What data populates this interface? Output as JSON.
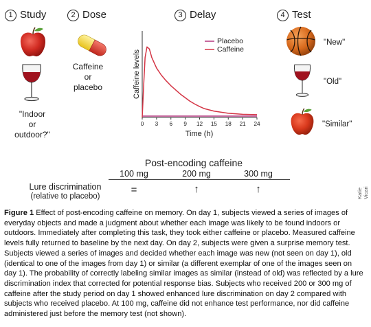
{
  "steps": [
    {
      "number": "1",
      "label": "Study"
    },
    {
      "number": "2",
      "label": "Dose"
    },
    {
      "number": "3",
      "label": "Delay"
    },
    {
      "number": "4",
      "label": "Test"
    }
  ],
  "study": {
    "question_lines": [
      "\"Indoor",
      "or",
      "outdoor?\""
    ]
  },
  "dose": {
    "label_lines": [
      "Caffeine",
      "or",
      "placebo"
    ]
  },
  "test": {
    "labels": [
      "\"New\"",
      "\"Old\"",
      "\"Similar\""
    ]
  },
  "chart_data": {
    "type": "line",
    "ylabel": "Caffeine levels",
    "xlabel": "Time (h)",
    "xlim": [
      0,
      24
    ],
    "x_ticks": [
      0,
      3,
      6,
      9,
      12,
      15,
      18,
      21,
      24
    ],
    "tick_labels": [
      "0",
      "3",
      "6",
      "9",
      "12",
      "15",
      "18",
      "21",
      "24"
    ],
    "legend_position": "top-right",
    "series": [
      {
        "name": "Placebo",
        "color": "#b2367e",
        "x": [
          0,
          24
        ],
        "y": [
          0.02,
          0.02
        ]
      },
      {
        "name": "Caffeine",
        "color": "#d43545",
        "x": [
          0,
          0.3,
          0.6,
          1.0,
          1.5,
          2.0,
          3,
          4,
          5,
          6,
          7,
          8,
          9,
          10,
          11,
          12,
          13,
          15,
          18,
          21,
          24
        ],
        "y": [
          0.0,
          0.45,
          0.85,
          1.0,
          0.97,
          0.85,
          0.7,
          0.6,
          0.52,
          0.45,
          0.39,
          0.33,
          0.28,
          0.23,
          0.19,
          0.155,
          0.125,
          0.09,
          0.06,
          0.045,
          0.04
        ]
      }
    ],
    "ylim": [
      0,
      1.1
    ]
  },
  "table": {
    "title": "Post-encoding caffeine",
    "columns": [
      "100 mg",
      "200 mg",
      "300 mg"
    ],
    "row_label_lines": [
      "Lure discrimination",
      "(relative to placebo)"
    ],
    "cells": [
      "=",
      "↑",
      "↑"
    ]
  },
  "credit": "Katie Vicari",
  "figure_caption": {
    "label": "Figure 1",
    "text": "  Effect of post-encoding caffeine on memory. On day 1, subjects viewed a series of images of everyday objects and made a judgment about whether each image was likely to be found indoors or outdoors. Immediately after completing this task, they took either caffeine or placebo. Measured caffeine levels fully returned to baseline by the next day. On day 2, subjects were given a surprise memory test. Subjects viewed a series of images and decided whether each image was new (not seen on day 1), old (identical to one of the images from day 1) or similar (a different exemplar of one of the images seen on day 1). The probability of correctly labeling similar images as similar (instead of old) was reflected by a lure discrimination index that corrected for potential response bias. Subjects who received 200 or 300 mg of caffeine after the study period on day 1 showed enhanced lure discrimination on day 2 compared with subjects who received placebo. At 100 mg, caffeine did not enhance test performance, nor did caffeine administered just before the memory test (not shown)."
  }
}
